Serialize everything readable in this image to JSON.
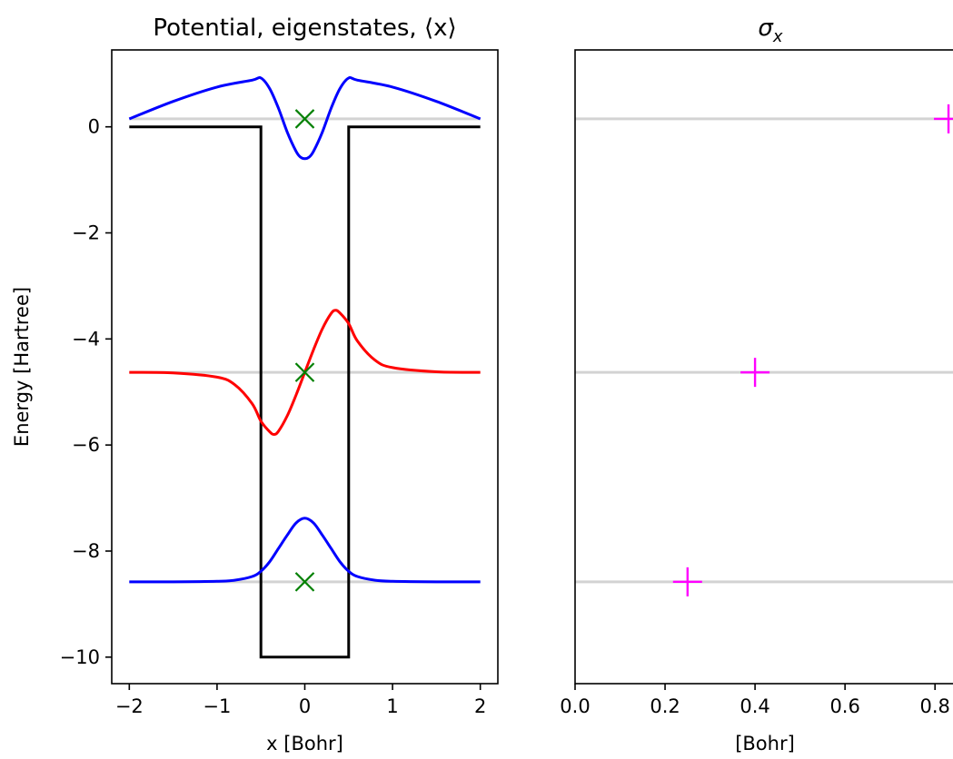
{
  "chart_data": [
    {
      "type": "line",
      "title": "Potential, eigenstates, ⟨x⟩",
      "xlabel": "x [Bohr]",
      "ylabel": "Energy [Hartree]",
      "xlim": [
        -2.2,
        2.2
      ],
      "ylim": [
        -10.5,
        1.45
      ],
      "xticks": [
        -2,
        -1,
        0,
        1,
        2
      ],
      "xtick_labels": [
        "−2",
        "−1",
        "0",
        "1",
        "2"
      ],
      "yticks": [
        0,
        -2,
        -4,
        -6,
        -8,
        -10
      ],
      "ytick_labels": [
        "0",
        "−2",
        "−4",
        "−6",
        "−8",
        "−10"
      ],
      "grid": false,
      "potential": {
        "x": [
          -2,
          -0.5,
          -0.5,
          0.5,
          0.5,
          2
        ],
        "y": [
          0,
          0,
          -10,
          -10,
          0,
          0
        ],
        "color": "#000000"
      },
      "energy_levels": [
        0.15,
        -4.63,
        -8.58
      ],
      "eigenstates": [
        {
          "energy": -8.58,
          "color": "#0000ff",
          "x": [
            -2.0,
            -1.5,
            -1.0,
            -0.8,
            -0.6,
            -0.5,
            -0.4,
            -0.3,
            -0.2,
            -0.1,
            0.0,
            0.1,
            0.2,
            0.3,
            0.4,
            0.5,
            0.6,
            0.8,
            1.0,
            1.5,
            2.0
          ],
          "y": [
            -8.58,
            -8.58,
            -8.57,
            -8.55,
            -8.48,
            -8.38,
            -8.2,
            -7.95,
            -7.7,
            -7.47,
            -7.38,
            -7.47,
            -7.7,
            -7.95,
            -8.2,
            -8.38,
            -8.48,
            -8.55,
            -8.57,
            -8.58,
            -8.58
          ]
        },
        {
          "energy": -4.63,
          "color": "#ff0000",
          "x": [
            -2.0,
            -1.5,
            -1.0,
            -0.8,
            -0.6,
            -0.5,
            -0.4,
            -0.35,
            -0.3,
            -0.2,
            -0.1,
            0.0,
            0.1,
            0.2,
            0.3,
            0.35,
            0.4,
            0.5,
            0.6,
            0.8,
            1.0,
            1.5,
            2.0
          ],
          "y": [
            -4.63,
            -4.64,
            -4.72,
            -4.86,
            -5.22,
            -5.55,
            -5.75,
            -5.8,
            -5.74,
            -5.45,
            -5.06,
            -4.63,
            -4.2,
            -3.81,
            -3.52,
            -3.46,
            -3.51,
            -3.71,
            -4.04,
            -4.4,
            -4.54,
            -4.62,
            -4.63
          ]
        },
        {
          "energy": 0.15,
          "color": "#0000ff",
          "x": [
            -2.0,
            -1.5,
            -1.0,
            -0.6,
            -0.5,
            -0.4,
            -0.3,
            -0.2,
            -0.1,
            -0.05,
            0.0,
            0.05,
            0.1,
            0.2,
            0.3,
            0.4,
            0.5,
            0.6,
            1.0,
            1.5,
            2.0
          ],
          "y": [
            0.15,
            0.48,
            0.75,
            0.88,
            0.92,
            0.72,
            0.35,
            -0.1,
            -0.46,
            -0.57,
            -0.6,
            -0.57,
            -0.46,
            -0.1,
            0.35,
            0.72,
            0.92,
            0.88,
            0.75,
            0.48,
            0.15
          ]
        }
      ],
      "expectation_x": {
        "marker": "x",
        "color": "#008000",
        "x": [
          0,
          0,
          0
        ],
        "y": [
          -8.58,
          -4.63,
          0.15
        ]
      }
    },
    {
      "type": "scatter",
      "title": "σx",
      "title_main": "σ",
      "title_sub": "x",
      "xlabel": "[Bohr]",
      "xlim": [
        0,
        0.84
      ],
      "xticks": [
        0.0,
        0.2,
        0.4,
        0.6,
        0.8
      ],
      "xtick_labels": [
        "0.0",
        "0.2",
        "0.4",
        "0.6",
        "0.8"
      ],
      "ylim": [
        -10.5,
        1.45
      ],
      "energy_levels": [
        0.15,
        -4.63,
        -8.58
      ],
      "grid": false,
      "points": {
        "marker": "+",
        "color": "#ff00ff",
        "x": [
          0.25,
          0.4,
          0.83
        ],
        "y": [
          -8.58,
          -4.63,
          0.15
        ]
      }
    }
  ]
}
